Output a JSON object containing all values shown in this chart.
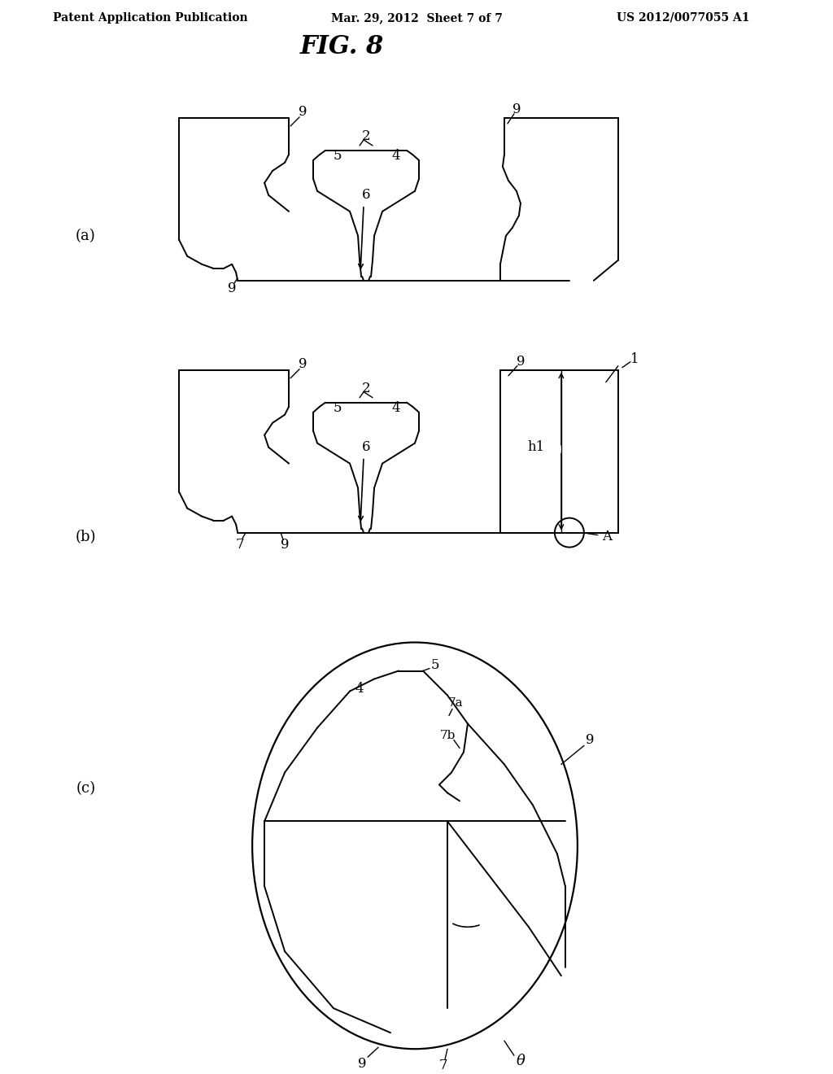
{
  "title": "FIG. 8",
  "header_left": "Patent Application Publication",
  "header_center": "Mar. 29, 2012  Sheet 7 of 7",
  "header_right": "US 2012/0077055 A1",
  "background": "#ffffff",
  "line_color": "#000000",
  "label_a": "(a)",
  "label_b": "(b)",
  "label_c": "(c)"
}
